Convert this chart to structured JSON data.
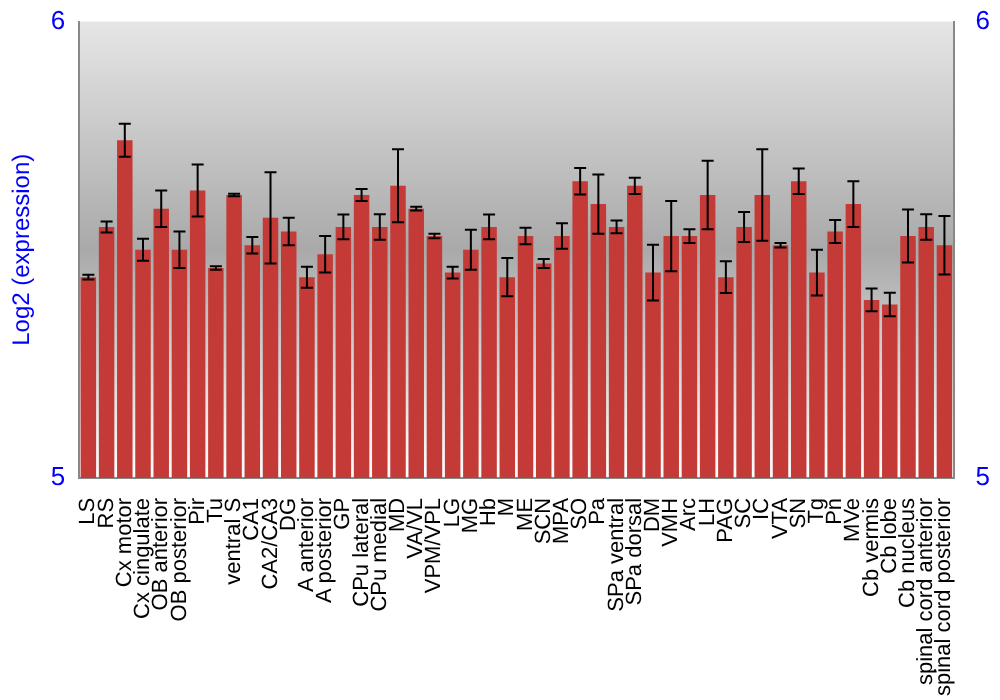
{
  "chart_data": {
    "type": "bar",
    "ylabel": "Log2 (expression)",
    "categories": [
      "LS",
      "RS",
      "Cx motor",
      "Cx cingulate",
      "OB anterior",
      "OB posterior",
      "Pir",
      "Tu",
      "ventral S",
      "CA1",
      "CA2/CA3",
      "DG",
      "A anterior",
      "A posterior",
      "GP",
      "CPu lateral",
      "CPu medial",
      "MD",
      "VA/VL",
      "VPM/VPL",
      "LG",
      "MG",
      "Hb",
      "M",
      "ME",
      "SCN",
      "MPA",
      "SO",
      "Pa",
      "SPa ventral",
      "SPa dorsal",
      "DM",
      "VMH",
      "Arc",
      "LH",
      "PAG",
      "SC",
      "IC",
      "VTA",
      "SN",
      "Tg",
      "Pn",
      "MVe",
      "Cb vermis",
      "Cb lobe",
      "Cb nucleus",
      "spinal cord anterior",
      "spinal cord posterior"
    ],
    "values": [
      5.44,
      5.55,
      5.74,
      5.5,
      5.59,
      5.5,
      5.63,
      5.46,
      5.62,
      5.51,
      5.57,
      5.54,
      5.44,
      5.49,
      5.55,
      5.62,
      5.55,
      5.64,
      5.59,
      5.53,
      5.45,
      5.5,
      5.55,
      5.44,
      5.53,
      5.47,
      5.53,
      5.65,
      5.6,
      5.55,
      5.64,
      5.45,
      5.53,
      5.53,
      5.62,
      5.44,
      5.55,
      5.62,
      5.51,
      5.65,
      5.45,
      5.54,
      5.6,
      5.39,
      5.38,
      5.53,
      5.55,
      5.51
    ],
    "errors": [
      0.005,
      0.012,
      0.036,
      0.024,
      0.04,
      0.04,
      0.057,
      0.004,
      0.003,
      0.018,
      0.1,
      0.03,
      0.023,
      0.04,
      0.027,
      0.013,
      0.028,
      0.08,
      0.004,
      0.005,
      0.013,
      0.044,
      0.027,
      0.042,
      0.018,
      0.01,
      0.028,
      0.029,
      0.065,
      0.014,
      0.018,
      0.061,
      0.077,
      0.015,
      0.075,
      0.035,
      0.033,
      0.1,
      0.005,
      0.028,
      0.05,
      0.025,
      0.05,
      0.025,
      0.026,
      0.058,
      0.028,
      0.064
    ],
    "color": "#c43a36",
    "ylim": [
      5,
      6
    ],
    "yticks": [
      5,
      6
    ],
    "y2lim": [
      5,
      6
    ],
    "y2ticks": [
      5,
      6
    ],
    "grid": false,
    "legend": false
  }
}
